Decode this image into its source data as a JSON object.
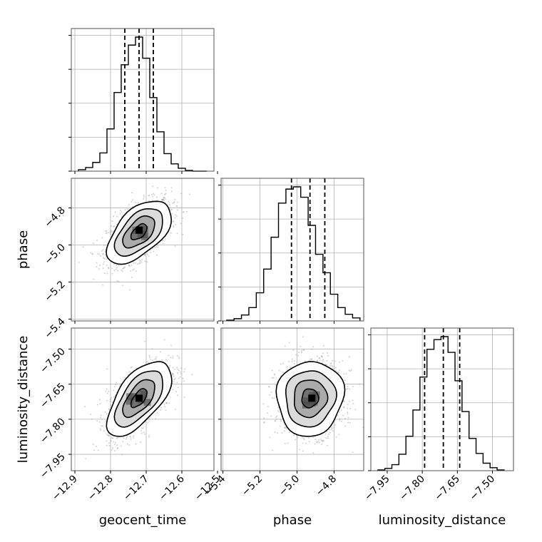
{
  "chart_data": {
    "type": "corner",
    "grid": true,
    "parameters": [
      "geocent_time",
      "phase",
      "luminosity_distance"
    ],
    "axis_labels": {
      "geocent_time": "geocent_time",
      "phase": "phase",
      "luminosity_distance": "luminosity_distance"
    },
    "ranges": {
      "geocent_time": [
        -12.91,
        -12.51
      ],
      "phase": [
        -5.41,
        -4.64
      ],
      "luminosity_distance": [
        -8.02,
        -7.41
      ]
    },
    "ticks": {
      "geocent_time": [
        "−12.9",
        "−12.8",
        "−12.7",
        "−12.6",
        "−12.5"
      ],
      "phase": [
        "−5.4",
        "−5.2",
        "−5.0",
        "−4.8"
      ],
      "luminosity_distance": [
        "−7.95",
        "−7.80",
        "−7.65",
        "−7.50"
      ]
    },
    "tick_values": {
      "geocent_time": [
        -12.9,
        -12.8,
        -12.7,
        -12.6,
        -12.5
      ],
      "phase": [
        -5.4,
        -5.2,
        -5.0,
        -4.8
      ],
      "luminosity_distance": [
        -7.95,
        -7.8,
        -7.65,
        -7.5
      ]
    },
    "quantiles": {
      "geocent_time": [
        -12.76,
        -12.72,
        -12.68
      ],
      "phase": [
        -5.03,
        -4.93,
        -4.85
      ],
      "luminosity_distance": [
        -7.79,
        -7.71,
        -7.64
      ]
    },
    "histograms": {
      "geocent_time": {
        "bins": [
          -12.89,
          -12.87,
          -12.85,
          -12.83,
          -12.81,
          -12.79,
          -12.77,
          -12.75,
          -12.73,
          -12.71,
          -12.69,
          -12.67,
          -12.65,
          -12.63,
          -12.61,
          -12.59,
          -12.57,
          -12.55,
          -12.53
        ],
        "counts": [
          0.2,
          0.5,
          1.2,
          2.5,
          5.8,
          10.8,
          14.6,
          17.3,
          18.4,
          15.5,
          10.1,
          5.4,
          2.4,
          1.0,
          0.4,
          0.1,
          0.0,
          0.0
        ]
      },
      "phase": {
        "bins": [
          -5.38,
          -5.34,
          -5.3,
          -5.26,
          -5.22,
          -5.18,
          -5.14,
          -5.1,
          -5.06,
          -5.02,
          -4.98,
          -4.94,
          -4.9,
          -4.86,
          -4.82,
          -4.78,
          -4.74,
          -4.7,
          -4.66
        ],
        "counts": [
          0.1,
          0.3,
          0.8,
          1.8,
          3.8,
          7.0,
          11.3,
          15.9,
          17.8,
          18.1,
          16.7,
          12.9,
          9.0,
          6.5,
          3.6,
          1.8,
          0.9,
          0.4
        ]
      },
      "luminosity_distance": {
        "bins": [
          -7.99,
          -7.96,
          -7.93,
          -7.9,
          -7.87,
          -7.84,
          -7.81,
          -7.78,
          -7.75,
          -7.72,
          -7.69,
          -7.66,
          -7.63,
          -7.6,
          -7.57,
          -7.54,
          -7.51,
          -7.48,
          -7.45
        ],
        "counts": [
          0.1,
          0.3,
          0.8,
          2.2,
          4.6,
          8.1,
          12.5,
          16.2,
          17.5,
          17.9,
          15.8,
          12.0,
          7.9,
          4.3,
          2.3,
          1.0,
          0.4,
          0.1
        ]
      }
    },
    "pairs": [
      {
        "x": "geocent_time",
        "y": "phase",
        "center": [
          -12.72,
          -4.93
        ],
        "sd": [
          0.045,
          0.085
        ],
        "corr": 0.55,
        "peak": [
          -12.72,
          -4.92
        ]
      },
      {
        "x": "geocent_time",
        "y": "luminosity_distance",
        "center": [
          -12.72,
          -7.71
        ],
        "sd": [
          0.045,
          0.08
        ],
        "corr": 0.62,
        "peak": [
          -12.72,
          -7.71
        ]
      },
      {
        "x": "phase",
        "y": "luminosity_distance",
        "center": [
          -4.93,
          -7.71
        ],
        "sd": [
          0.09,
          0.08
        ],
        "corr": 0.05,
        "peak": [
          -4.92,
          -7.71
        ]
      }
    ],
    "contour_levels_sigma": [
      0.5,
      1.0,
      1.5,
      2.0
    ],
    "colors": {
      "line": "#000000",
      "grid": "#b0b0b0",
      "scatter": "#9a9a9a",
      "density": "#000000"
    }
  }
}
